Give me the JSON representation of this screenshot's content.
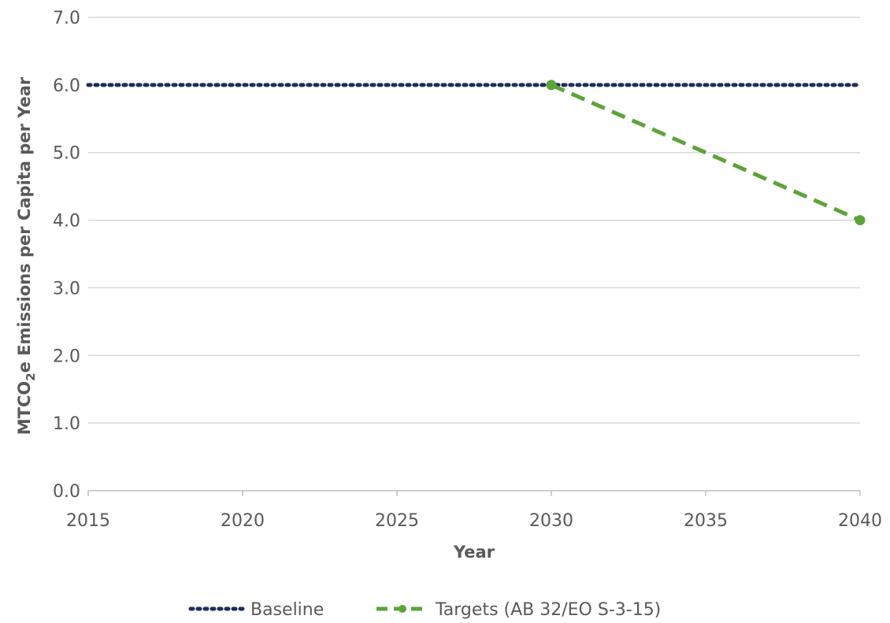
{
  "chart_data": {
    "type": "line",
    "title": "",
    "xlabel": "Year",
    "ylabel": {
      "pre": "MTCO",
      "sub": "2",
      "post": "e Emissions per Capita per Year"
    },
    "xlim": [
      2015,
      2040
    ],
    "ylim": [
      0,
      7
    ],
    "xticks": [
      "2015",
      "2020",
      "2025",
      "2030",
      "2035",
      "2040"
    ],
    "yticks": [
      "0.0",
      "1.0",
      "2.0",
      "3.0",
      "4.0",
      "5.0",
      "6.0",
      "7.0"
    ],
    "grid": true,
    "legend_position": "bottom",
    "series": [
      {
        "name": "Baseline",
        "color": "#1f2d5a",
        "style": "dotted",
        "markers": false,
        "x": [
          2015,
          2040
        ],
        "y": [
          6.0,
          6.0
        ]
      },
      {
        "name": "Targets (AB 32/EO S-3-15)",
        "color": "#5ea33a",
        "style": "dashed",
        "markers": true,
        "x": [
          2030,
          2040
        ],
        "y": [
          6.0,
          4.0
        ]
      }
    ]
  }
}
